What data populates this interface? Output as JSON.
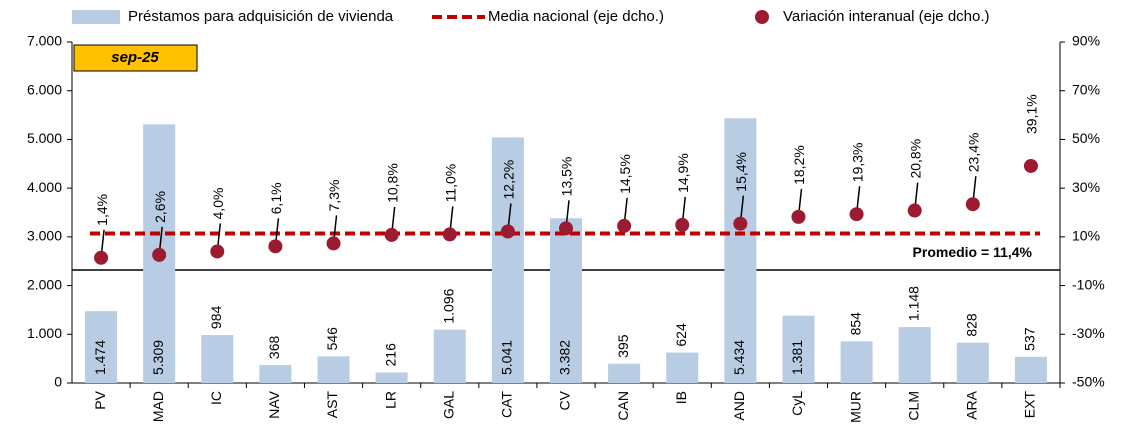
{
  "chart_data": {
    "type": "bar",
    "annotation": "sep-25",
    "categories": [
      "PV",
      "MAD",
      "IC",
      "NAV",
      "AST",
      "LR",
      "GAL",
      "CAT",
      "CV",
      "CAN",
      "IB",
      "AND",
      "CyL",
      "MUR",
      "CLM",
      "ARA",
      "EXT"
    ],
    "series": [
      {
        "name": "Préstamos para adquisición de vivienda",
        "type": "bar",
        "color": "#b8cce4",
        "values": [
          1474,
          5309,
          984,
          368,
          546,
          216,
          1096,
          5041,
          3382,
          395,
          624,
          5434,
          1381,
          854,
          1148,
          828,
          537
        ],
        "value_labels": [
          "1.474",
          "5.309",
          "984",
          "368",
          "546",
          "216",
          "1.096",
          "5.041",
          "3.382",
          "395",
          "624",
          "5.434",
          "1.381",
          "854",
          "1.148",
          "828",
          "537"
        ]
      },
      {
        "name": "Variación interanual (eje dcho.)",
        "type": "scatter",
        "axis": "y2",
        "color": "#9b1b30",
        "values": [
          1.4,
          2.6,
          4.0,
          6.1,
          7.3,
          10.8,
          11.0,
          12.2,
          13.5,
          14.5,
          14.9,
          15.4,
          18.2,
          19.3,
          20.8,
          23.4,
          39.1
        ],
        "value_labels": [
          "1,4%",
          "2,6%",
          "4,0%",
          "6,1%",
          "7,3%",
          "10,8%",
          "11,0%",
          "12,2%",
          "13,5%",
          "14,5%",
          "14,9%",
          "15,4%",
          "18,2%",
          "19,3%",
          "20,8%",
          "23,4%",
          "39,1%"
        ]
      }
    ],
    "reference_line": {
      "name": "Media nacional (eje dcho.)",
      "axis": "y2",
      "value": 11.4,
      "label": "Promedio = 11,4%",
      "color": "#c00000"
    },
    "ylim": [
      0,
      7000
    ],
    "yticks": [
      {
        "value": 0,
        "label": "0"
      },
      {
        "value": 1000,
        "label": "1.000"
      },
      {
        "value": 2000,
        "label": "2.000"
      },
      {
        "value": 3000,
        "label": "3.000"
      },
      {
        "value": 4000,
        "label": "4.000"
      },
      {
        "value": 5000,
        "label": "5.000"
      },
      {
        "value": 6000,
        "label": "6.000"
      },
      {
        "value": 7000,
        "label": "7.000"
      }
    ],
    "y2lim": [
      -50,
      90
    ],
    "y2ticks": [
      {
        "value": -50,
        "label": "-50%"
      },
      {
        "value": -30,
        "label": "-30%"
      },
      {
        "value": -10,
        "label": "-10%"
      },
      {
        "value": 10,
        "label": "10%"
      },
      {
        "value": 30,
        "label": "30%"
      },
      {
        "value": 50,
        "label": "50%"
      },
      {
        "value": 70,
        "label": "70%"
      },
      {
        "value": 90,
        "label": "90%"
      }
    ]
  }
}
